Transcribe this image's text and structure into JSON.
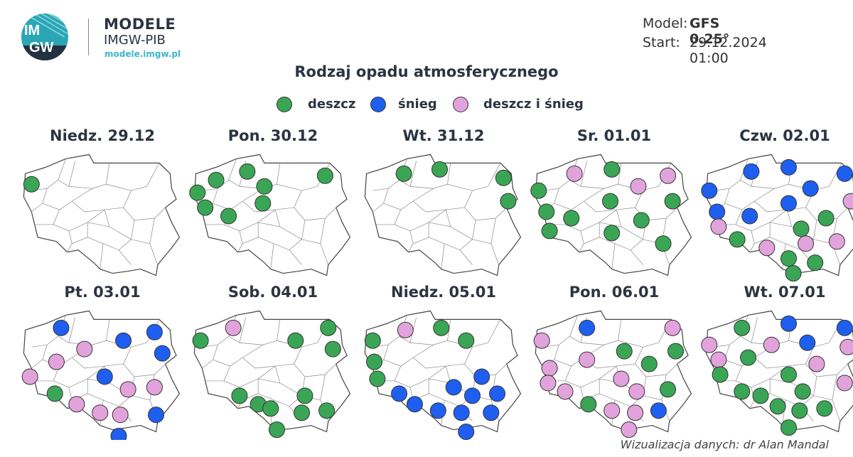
{
  "header": {
    "brand_title": "MODELE",
    "brand_subtitle": "IMGW-PIB",
    "brand_url": "modele.imgw.pl",
    "logo_text": "IMGW",
    "logo_text_top": "IM",
    "logo_text_bottom": "GW"
  },
  "model_info": {
    "model_label": "Model:",
    "model_value": "GFS 0.25°",
    "start_label": "Start:",
    "start_value": "29.12.2024 01:00"
  },
  "title": "Rodzaj opadu atmosferycznego",
  "legend": [
    {
      "key": "rain",
      "label": "deszcz",
      "color": "#3aa655"
    },
    {
      "key": "snow",
      "label": "śnieg",
      "color": "#1f5ff0"
    },
    {
      "key": "mix",
      "label": "deszcz i śnieg",
      "color": "#e2a3dc"
    }
  ],
  "panels": [
    {
      "date": "Niedz. 29.12",
      "points": [
        {
          "lon": 14.6,
          "lat": 53.4,
          "type": "rain"
        }
      ]
    },
    {
      "date": "Pon. 30.12",
      "points": [
        {
          "lon": 14.3,
          "lat": 53.0,
          "type": "rain"
        },
        {
          "lon": 15.5,
          "lat": 53.6,
          "type": "rain"
        },
        {
          "lon": 17.5,
          "lat": 54.0,
          "type": "rain"
        },
        {
          "lon": 18.6,
          "lat": 53.3,
          "type": "rain"
        },
        {
          "lon": 22.5,
          "lat": 53.8,
          "type": "rain"
        },
        {
          "lon": 14.8,
          "lat": 52.3,
          "type": "rain"
        },
        {
          "lon": 16.3,
          "lat": 51.9,
          "type": "rain"
        },
        {
          "lon": 18.5,
          "lat": 52.5,
          "type": "rain"
        }
      ]
    },
    {
      "date": "Wt. 31.12",
      "points": [
        {
          "lon": 16.6,
          "lat": 53.9,
          "type": "rain"
        },
        {
          "lon": 18.9,
          "lat": 54.1,
          "type": "rain"
        },
        {
          "lon": 23.0,
          "lat": 53.7,
          "type": "rain"
        },
        {
          "lon": 23.3,
          "lat": 52.6,
          "type": "rain"
        }
      ]
    },
    {
      "date": "Sr. 01.01",
      "points": [
        {
          "lon": 16.6,
          "lat": 53.9,
          "type": "mix"
        },
        {
          "lon": 19.0,
          "lat": 54.1,
          "type": "rain"
        },
        {
          "lon": 22.6,
          "lat": 53.8,
          "type": "mix"
        },
        {
          "lon": 14.3,
          "lat": 53.1,
          "type": "rain"
        },
        {
          "lon": 20.7,
          "lat": 53.3,
          "type": "mix"
        },
        {
          "lon": 14.8,
          "lat": 52.1,
          "type": "rain"
        },
        {
          "lon": 16.4,
          "lat": 51.8,
          "type": "rain"
        },
        {
          "lon": 18.9,
          "lat": 52.6,
          "type": "rain"
        },
        {
          "lon": 22.9,
          "lat": 52.6,
          "type": "rain"
        },
        {
          "lon": 15.0,
          "lat": 51.2,
          "type": "rain"
        },
        {
          "lon": 19.0,
          "lat": 51.1,
          "type": "rain"
        },
        {
          "lon": 20.9,
          "lat": 51.7,
          "type": "rain"
        },
        {
          "lon": 22.3,
          "lat": 50.6,
          "type": "rain"
        }
      ]
    },
    {
      "date": "Czw. 02.01",
      "points": [
        {
          "lon": 17.0,
          "lat": 54.0,
          "type": "snow"
        },
        {
          "lon": 19.4,
          "lat": 54.2,
          "type": "snow"
        },
        {
          "lon": 23.0,
          "lat": 53.9,
          "type": "snow"
        },
        {
          "lon": 14.3,
          "lat": 53.1,
          "type": "snow"
        },
        {
          "lon": 20.8,
          "lat": 53.2,
          "type": "snow"
        },
        {
          "lon": 19.4,
          "lat": 52.5,
          "type": "snow"
        },
        {
          "lon": 23.4,
          "lat": 52.6,
          "type": "mix"
        },
        {
          "lon": 14.8,
          "lat": 52.1,
          "type": "snow"
        },
        {
          "lon": 16.9,
          "lat": 51.9,
          "type": "snow"
        },
        {
          "lon": 14.9,
          "lat": 51.4,
          "type": "mix"
        },
        {
          "lon": 20.2,
          "lat": 51.3,
          "type": "rain"
        },
        {
          "lon": 21.8,
          "lat": 51.8,
          "type": "rain"
        },
        {
          "lon": 16.1,
          "lat": 50.8,
          "type": "rain"
        },
        {
          "lon": 18.0,
          "lat": 50.4,
          "type": "mix"
        },
        {
          "lon": 20.5,
          "lat": 50.6,
          "type": "mix"
        },
        {
          "lon": 22.5,
          "lat": 50.7,
          "type": "mix"
        },
        {
          "lon": 19.4,
          "lat": 49.9,
          "type": "rain"
        },
        {
          "lon": 21.1,
          "lat": 49.7,
          "type": "rain"
        },
        {
          "lon": 19.7,
          "lat": 49.2,
          "type": "rain"
        }
      ]
    },
    {
      "date": "Pt. 03.01",
      "points": [
        {
          "lon": 16.5,
          "lat": 54.0,
          "type": "snow"
        },
        {
          "lon": 22.5,
          "lat": 53.8,
          "type": "snow"
        },
        {
          "lon": 20.5,
          "lat": 53.4,
          "type": "snow"
        },
        {
          "lon": 18.0,
          "lat": 53.0,
          "type": "mix"
        },
        {
          "lon": 23.0,
          "lat": 52.8,
          "type": "snow"
        },
        {
          "lon": 16.2,
          "lat": 52.4,
          "type": "mix"
        },
        {
          "lon": 14.5,
          "lat": 51.7,
          "type": "mix"
        },
        {
          "lon": 19.3,
          "lat": 51.7,
          "type": "snow"
        },
        {
          "lon": 16.1,
          "lat": 50.9,
          "type": "rain"
        },
        {
          "lon": 20.8,
          "lat": 51.1,
          "type": "mix"
        },
        {
          "lon": 22.5,
          "lat": 51.2,
          "type": "mix"
        },
        {
          "lon": 17.5,
          "lat": 50.4,
          "type": "mix"
        },
        {
          "lon": 19.0,
          "lat": 50.0,
          "type": "mix"
        },
        {
          "lon": 20.3,
          "lat": 49.9,
          "type": "mix"
        },
        {
          "lon": 22.6,
          "lat": 49.9,
          "type": "snow"
        },
        {
          "lon": 20.2,
          "lat": 48.9,
          "type": "snow"
        }
      ]
    },
    {
      "date": "Sob. 04.01",
      "points": [
        {
          "lon": 16.6,
          "lat": 54.0,
          "type": "mix"
        },
        {
          "lon": 22.7,
          "lat": 54.0,
          "type": "rain"
        },
        {
          "lon": 14.5,
          "lat": 53.4,
          "type": "rain"
        },
        {
          "lon": 20.6,
          "lat": 53.4,
          "type": "rain"
        },
        {
          "lon": 23.0,
          "lat": 53.0,
          "type": "rain"
        },
        {
          "lon": 17.0,
          "lat": 50.8,
          "type": "rain"
        },
        {
          "lon": 21.2,
          "lat": 50.8,
          "type": "rain"
        },
        {
          "lon": 18.2,
          "lat": 50.4,
          "type": "rain"
        },
        {
          "lon": 19.0,
          "lat": 50.2,
          "type": "rain"
        },
        {
          "lon": 21.0,
          "lat": 50.0,
          "type": "rain"
        },
        {
          "lon": 22.6,
          "lat": 50.1,
          "type": "rain"
        },
        {
          "lon": 19.4,
          "lat": 49.2,
          "type": "rain"
        }
      ]
    },
    {
      "date": "Niedz. 05.01",
      "points": [
        {
          "lon": 16.7,
          "lat": 53.9,
          "type": "mix"
        },
        {
          "lon": 19.0,
          "lat": 54.0,
          "type": "rain"
        },
        {
          "lon": 14.6,
          "lat": 53.4,
          "type": "rain"
        },
        {
          "lon": 20.6,
          "lat": 53.4,
          "type": "rain"
        },
        {
          "lon": 14.7,
          "lat": 52.4,
          "type": "rain"
        },
        {
          "lon": 21.6,
          "lat": 51.7,
          "type": "snow"
        },
        {
          "lon": 14.9,
          "lat": 51.6,
          "type": "rain"
        },
        {
          "lon": 19.8,
          "lat": 51.2,
          "type": "snow"
        },
        {
          "lon": 16.3,
          "lat": 50.9,
          "type": "snow"
        },
        {
          "lon": 21.0,
          "lat": 50.8,
          "type": "snow"
        },
        {
          "lon": 22.6,
          "lat": 50.9,
          "type": "snow"
        },
        {
          "lon": 17.3,
          "lat": 50.4,
          "type": "snow"
        },
        {
          "lon": 18.8,
          "lat": 50.1,
          "type": "snow"
        },
        {
          "lon": 20.3,
          "lat": 50.0,
          "type": "snow"
        },
        {
          "lon": 22.2,
          "lat": 50.0,
          "type": "snow"
        },
        {
          "lon": 20.6,
          "lat": 49.1,
          "type": "snow"
        }
      ]
    },
    {
      "date": "Pon. 06.01",
      "points": [
        {
          "lon": 17.4,
          "lat": 54.0,
          "type": "snow"
        },
        {
          "lon": 22.9,
          "lat": 54.0,
          "type": "mix"
        },
        {
          "lon": 14.5,
          "lat": 53.4,
          "type": "mix"
        },
        {
          "lon": 19.8,
          "lat": 52.9,
          "type": "rain"
        },
        {
          "lon": 23.1,
          "lat": 52.9,
          "type": "rain"
        },
        {
          "lon": 17.4,
          "lat": 52.5,
          "type": "mix"
        },
        {
          "lon": 15.0,
          "lat": 52.1,
          "type": "mix"
        },
        {
          "lon": 21.4,
          "lat": 52.3,
          "type": "rain"
        },
        {
          "lon": 14.9,
          "lat": 51.4,
          "type": "mix"
        },
        {
          "lon": 19.6,
          "lat": 51.6,
          "type": "mix"
        },
        {
          "lon": 22.6,
          "lat": 51.1,
          "type": "rain"
        },
        {
          "lon": 16.0,
          "lat": 51.0,
          "type": "mix"
        },
        {
          "lon": 20.6,
          "lat": 51.0,
          "type": "mix"
        },
        {
          "lon": 17.5,
          "lat": 50.4,
          "type": "rain"
        },
        {
          "lon": 19.0,
          "lat": 50.1,
          "type": "mix"
        },
        {
          "lon": 20.5,
          "lat": 50.0,
          "type": "mix"
        },
        {
          "lon": 22.0,
          "lat": 50.1,
          "type": "snow"
        },
        {
          "lon": 20.1,
          "lat": 49.2,
          "type": "mix"
        }
      ]
    },
    {
      "date": "Wt. 07.01",
      "points": [
        {
          "lon": 16.4,
          "lat": 54.0,
          "type": "rain"
        },
        {
          "lon": 19.4,
          "lat": 54.2,
          "type": "snow"
        },
        {
          "lon": 23.0,
          "lat": 54.0,
          "type": "snow"
        },
        {
          "lon": 14.3,
          "lat": 53.2,
          "type": "mix"
        },
        {
          "lon": 18.3,
          "lat": 53.2,
          "type": "mix"
        },
        {
          "lon": 20.6,
          "lat": 53.3,
          "type": "snow"
        },
        {
          "lon": 23.2,
          "lat": 53.1,
          "type": "mix"
        },
        {
          "lon": 14.9,
          "lat": 52.5,
          "type": "mix"
        },
        {
          "lon": 16.8,
          "lat": 52.6,
          "type": "rain"
        },
        {
          "lon": 21.2,
          "lat": 52.3,
          "type": "mix"
        },
        {
          "lon": 15.0,
          "lat": 51.8,
          "type": "rain"
        },
        {
          "lon": 19.4,
          "lat": 51.8,
          "type": "rain"
        },
        {
          "lon": 23.0,
          "lat": 51.4,
          "type": "mix"
        },
        {
          "lon": 16.4,
          "lat": 51.0,
          "type": "rain"
        },
        {
          "lon": 17.6,
          "lat": 50.8,
          "type": "rain"
        },
        {
          "lon": 20.3,
          "lat": 51.0,
          "type": "rain"
        },
        {
          "lon": 18.7,
          "lat": 50.3,
          "type": "rain"
        },
        {
          "lon": 20.1,
          "lat": 50.1,
          "type": "rain"
        },
        {
          "lon": 21.7,
          "lat": 50.2,
          "type": "rain"
        },
        {
          "lon": 19.4,
          "lat": 49.3,
          "type": "rain"
        }
      ]
    }
  ],
  "credit": "Wizualizacja danych: dr Alan Mandal"
}
